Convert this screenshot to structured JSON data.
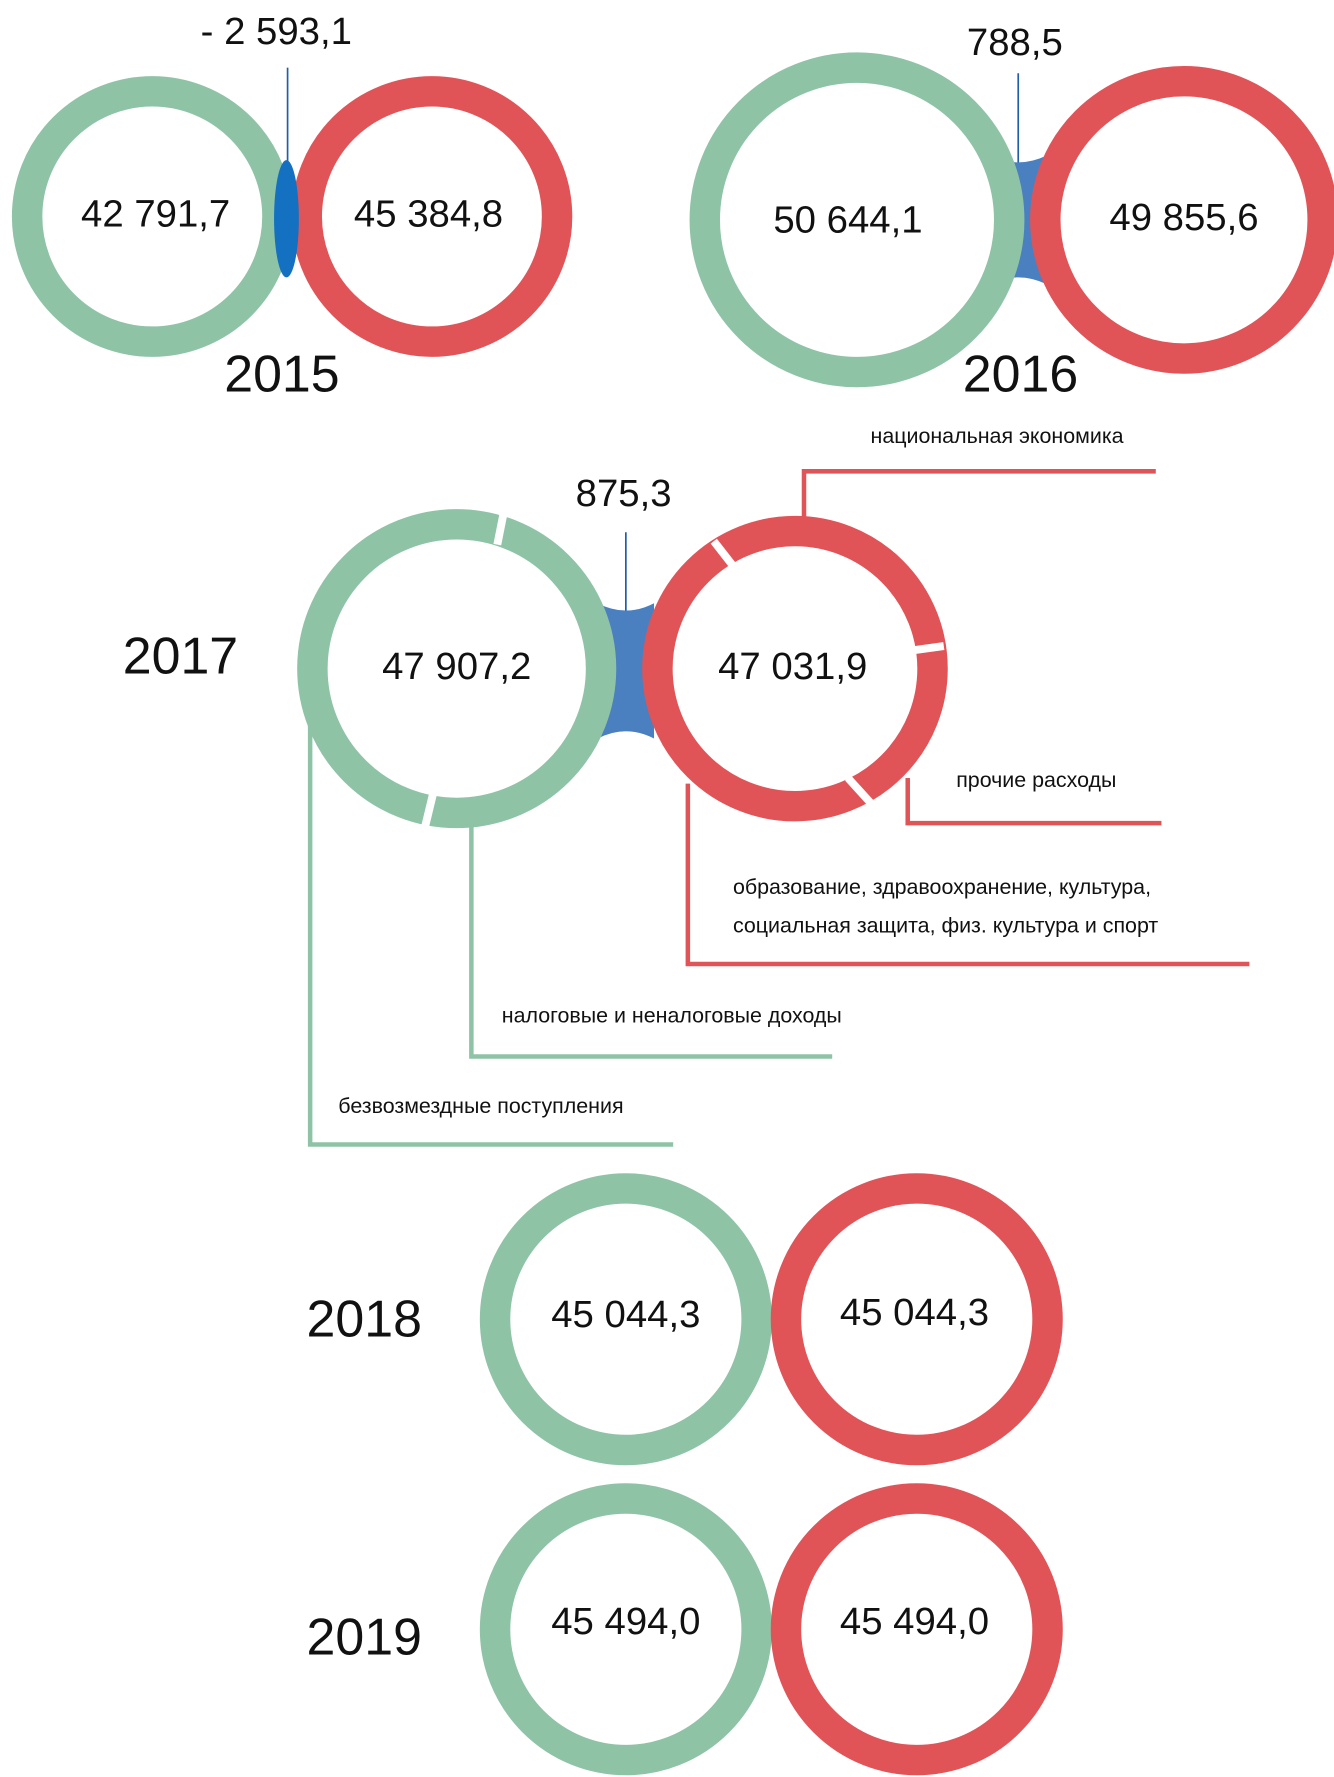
{
  "years": [
    {
      "year": "2015",
      "income": "42 791,7",
      "expense": "45 384,8",
      "balance": "- 2 593,1"
    },
    {
      "year": "2016",
      "income": "50 644,1",
      "expense": "49 855,6",
      "balance": "788,5"
    },
    {
      "year": "2017",
      "income": "47 907,2",
      "expense": "47 031,9",
      "balance": "875,3"
    },
    {
      "year": "2018",
      "income": "45 044,3",
      "expense": "45 044,3"
    },
    {
      "year": "2019",
      "income": "45 494,0",
      "expense": "45 494,0"
    }
  ],
  "segments_2017": {
    "expense": [
      "национальная экономика",
      "прочие расходы",
      "образование, здравоохранение, культура,",
      "социальная защита, физ. культура и спорт"
    ],
    "income": [
      "налоговые и неналоговые доходы",
      "безвозмездные поступления"
    ]
  }
}
